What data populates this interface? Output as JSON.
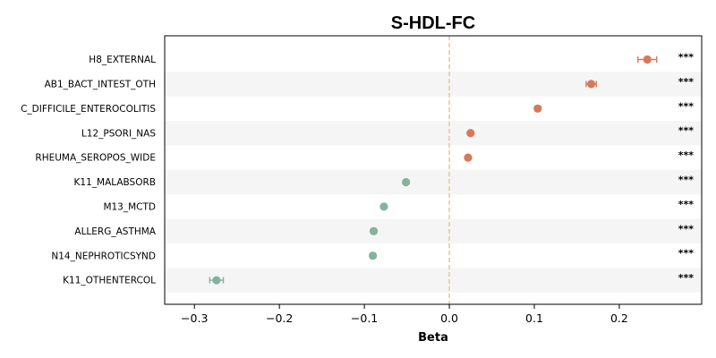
{
  "chart_data": {
    "type": "scatter",
    "title": "S-HDL-FC",
    "xlabel": "Beta",
    "ylabel": "",
    "xlim": [
      -0.335,
      0.297
    ],
    "xticks": [
      -0.3,
      -0.2,
      -0.1,
      0.0,
      0.1,
      0.2
    ],
    "xtick_labels": [
      "−0.3",
      "−0.2",
      "−0.1",
      "0.0",
      "0.1",
      "0.2"
    ],
    "reference_line": 0.0,
    "colors": {
      "positive": "#d9775a",
      "negative": "#82b39b",
      "reference": "#f0c48c",
      "stripe": "#f5f5f5"
    },
    "categories": [
      "H8_EXTERNAL",
      "AB1_BACT_INTEST_OTH",
      "C_DIFFICILE_ENTEROCOLITIS",
      "L12_PSORI_NAS",
      "RHEUMA_SEROPOS_WIDE",
      "K11_MALABSORB",
      "M13_MCTD",
      "ALLERG_ASTHMA",
      "N14_NEPHROTICSYND",
      "K11_OTHENTERCOL"
    ],
    "values": [
      0.233,
      0.167,
      0.104,
      0.025,
      0.022,
      -0.051,
      -0.077,
      -0.089,
      -0.09,
      -0.274
    ],
    "ci_low": [
      0.222,
      0.161,
      0.101,
      0.023,
      0.02,
      -0.053,
      -0.079,
      -0.092,
      -0.093,
      -0.282
    ],
    "ci_high": [
      0.244,
      0.173,
      0.107,
      0.027,
      0.024,
      -0.049,
      -0.075,
      -0.086,
      -0.087,
      -0.266
    ],
    "significance": [
      "***",
      "***",
      "***",
      "***",
      "***",
      "***",
      "***",
      "***",
      "***",
      "***"
    ]
  }
}
